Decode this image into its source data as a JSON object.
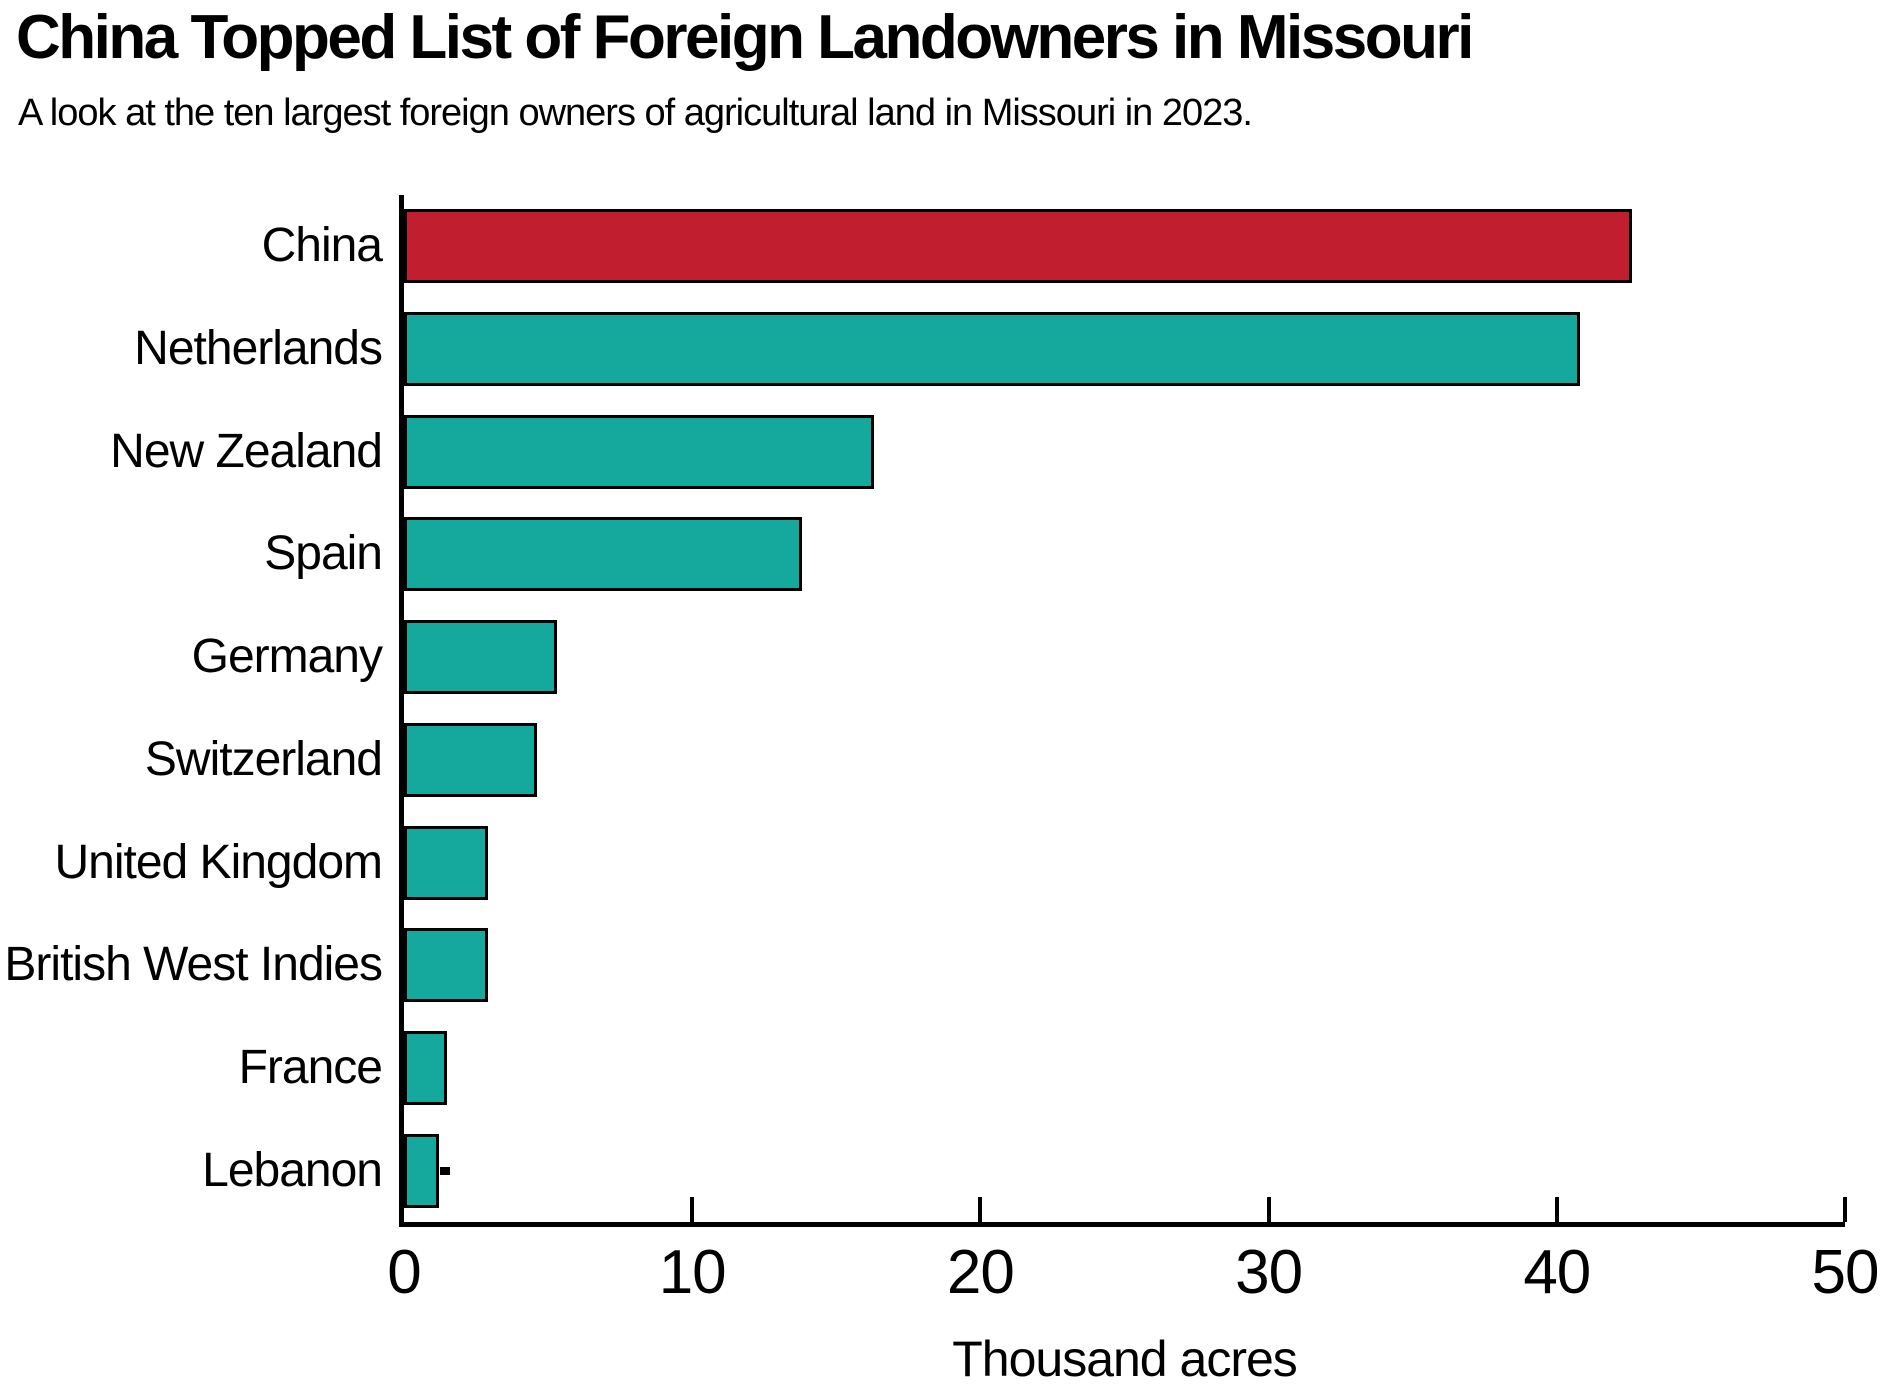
{
  "header": {
    "title": "China Topped List of Foreign Landowners in Missouri",
    "subtitle": "A look at the ten largest foreign owners of agricultural land in Missouri in 2023."
  },
  "chart_data": {
    "type": "bar",
    "orientation": "horizontal",
    "title": "China Topped List of Foreign Landowners in Missouri",
    "subtitle": "A look at the ten largest foreign owners of agricultural land in Missouri in 2023.",
    "categories": [
      "China",
      "Netherlands",
      "New Zealand",
      "Spain",
      "Germany",
      "Switzerland",
      "United Kingdom",
      "British West Indies",
      "France",
      "Lebanon"
    ],
    "values": [
      42.6,
      40.8,
      16.3,
      13.8,
      5.3,
      4.6,
      2.9,
      2.9,
      1.5,
      1.2
    ],
    "xlabel": "Thousand acres",
    "ylabel": "",
    "xlim": [
      0,
      50
    ],
    "xticks": [
      0,
      10,
      20,
      30,
      40,
      50
    ],
    "grid": false,
    "legend": null,
    "highlight_category": "China",
    "end_marker_category": "Lebanon",
    "colors": {
      "highlight_bar": "#C11F30",
      "default_bar": "#15A99D",
      "bar_border": "#000000",
      "axis": "#000000",
      "text": "#000000",
      "background": "#FFFFFF"
    }
  }
}
